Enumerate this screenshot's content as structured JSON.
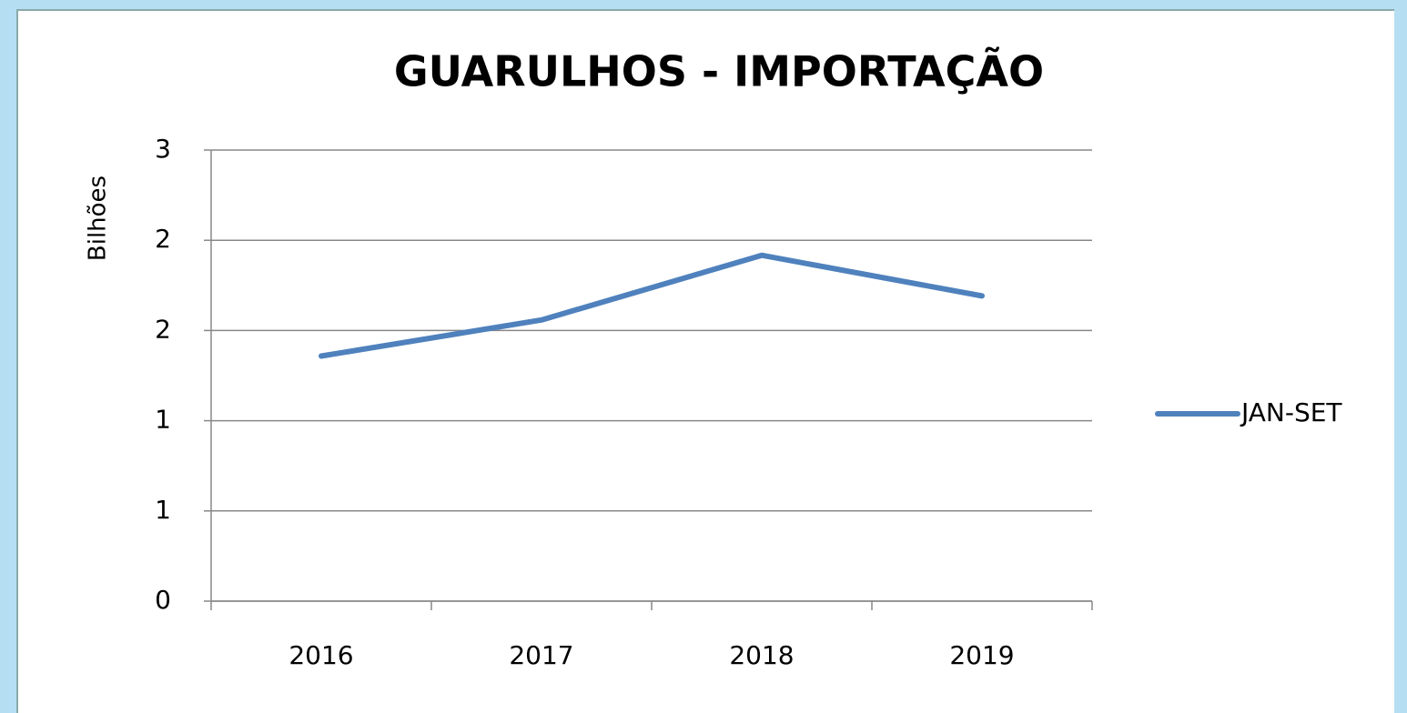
{
  "chart_data": {
    "type": "line",
    "title": "GUARULHOS - IMPORTAÇÃO",
    "y_label": "Bilhões",
    "categories": [
      "2016",
      "2017",
      "2018",
      "2019"
    ],
    "series": [
      {
        "name": "JAN-SET",
        "color": "#4f81bd",
        "values": [
          1.63,
          1.87,
          2.3,
          2.03
        ]
      }
    ],
    "ylim": [
      0,
      3
    ],
    "yticks": [
      0,
      {
        "value": 0.6,
        "label": "1"
      },
      {
        "value": 1.2,
        "label": "1"
      },
      {
        "value": 1.8,
        "label": "2"
      },
      {
        "value": 2.4,
        "label": "2"
      },
      3
    ],
    "grid": true,
    "legend": "right"
  }
}
